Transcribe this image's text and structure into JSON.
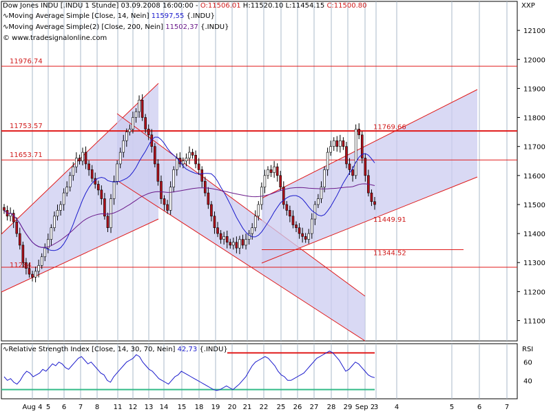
{
  "header": {
    "line1": {
      "prefix": "Dow Jones INDU [.INDU  1 Stunde] 03.09.2008 16:00:00 - ",
      "o": "O:11506.01",
      "h": " H:11520.10",
      "l": " L:11454.15",
      "c": " C:11500.80"
    },
    "line2": {
      "prefix": "Moving Average Simple [Close, 14, Nein] ",
      "value": "11597,55",
      "suffix": " {.INDU}"
    },
    "line3": {
      "prefix": "Moving Average Simple(2) [Close, 200, Nein] ",
      "value": "11502,37",
      "suffix": " {.INDU}"
    },
    "line4": "© www.tradesignalonline.com"
  },
  "corner_labels": {
    "main": "XXP",
    "rsi": "RSI"
  },
  "rsi_header": {
    "prefix": "Relative Strength Index [Close, 14, 30, 70, Nein] ",
    "value": "42,73",
    "suffix": " {.INDU}"
  },
  "colors": {
    "candle_up": "#ffffff",
    "candle_down": "#b0101a",
    "wick": "#000000",
    "ma14": "#1a1acc",
    "ma200": "#6a1a8a",
    "level_line": "#e01a1a",
    "channel_fill": "#ccccf0",
    "rsi_line": "#1a1acc",
    "rsi_70": "#e01a1a",
    "rsi_30": "#33bb88",
    "grid": "#a8b8c8"
  },
  "chart_data": {
    "type": "candlestick",
    "title": "Dow Jones INDU [.INDU  1 Stunde]",
    "x_ticks": [
      "Aug 4",
      "5",
      "6",
      "7",
      "8",
      "11",
      "12",
      "13",
      "14",
      "15",
      "18",
      "19",
      "20",
      "21",
      "22",
      "25",
      "26",
      "27",
      "28",
      "29",
      "Sep 2",
      "3",
      "4",
      "5",
      "6",
      "7"
    ],
    "ylim": [
      11030,
      12200
    ],
    "y_ticks": [
      11100,
      11200,
      11300,
      11400,
      11500,
      11600,
      11700,
      11800,
      11900,
      12000,
      12100
    ],
    "grid": true,
    "close_series": [
      11480,
      11460,
      11470,
      11440,
      11400,
      11360,
      11300,
      11280,
      11260,
      11250,
      11270,
      11290,
      11320,
      11350,
      11380,
      11420,
      11460,
      11480,
      11500,
      11540,
      11560,
      11600,
      11630,
      11660,
      11650,
      11680,
      11640,
      11620,
      11590,
      11570,
      11550,
      11520,
      11460,
      11420,
      11520,
      11580,
      11640,
      11680,
      11720,
      11750,
      11760,
      11800,
      11820,
      11860,
      11800,
      11760,
      11740,
      11700,
      11640,
      11580,
      11520,
      11500,
      11480,
      11560,
      11620,
      11660,
      11640,
      11650,
      11660,
      11680,
      11670,
      11640,
      11620,
      11580,
      11540,
      11500,
      11460,
      11420,
      11400,
      11380,
      11390,
      11370,
      11360,
      11370,
      11350,
      11380,
      11360,
      11380,
      11400,
      11420,
      11460,
      11500,
      11560,
      11600,
      11620,
      11610,
      11630,
      11600,
      11560,
      11500,
      11480,
      11460,
      11430,
      11420,
      11400,
      11390,
      11380,
      11400,
      11450,
      11500,
      11520,
      11560,
      11620,
      11680,
      11700,
      11720,
      11700,
      11720,
      11700,
      11640,
      11620,
      11600,
      11760,
      11740,
      11660,
      11600,
      11540,
      11510,
      11500
    ],
    "ma14": {
      "name": "Moving Average Simple [Close, 14, Nein]",
      "last": "11597,55"
    },
    "ma200": {
      "name": "Moving Average Simple(2) [Close, 200, Nein]",
      "last": "11502,37"
    },
    "horizontal_levels": [
      {
        "value": 11976.74,
        "label": "11976.74"
      },
      {
        "value": 11753.57,
        "label": "11753.57"
      },
      {
        "value": 11653.71,
        "label": "11653.71"
      },
      {
        "value": 11769.66,
        "label": "11769.66"
      },
      {
        "value": 11449.91,
        "label": "11449.91"
      },
      {
        "value": 11344.52,
        "label": "11344.52"
      },
      {
        "value": 11284,
        "label": "11284"
      }
    ],
    "rsi": {
      "name": "Relative Strength Index [Close, 14, 30, 70, Nein]",
      "ylim": [
        20,
        80
      ],
      "y_ticks": [
        40,
        60
      ],
      "overbought": 70,
      "oversold": 30,
      "values": [
        44,
        40,
        42,
        38,
        36,
        40,
        46,
        50,
        48,
        44,
        46,
        48,
        52,
        50,
        54,
        58,
        56,
        60,
        58,
        54,
        52,
        56,
        60,
        64,
        66,
        62,
        58,
        60,
        56,
        52,
        48,
        46,
        40,
        38,
        44,
        48,
        52,
        56,
        60,
        62,
        64,
        68,
        66,
        60,
        56,
        52,
        50,
        46,
        42,
        40,
        38,
        36,
        40,
        44,
        46,
        50,
        48,
        46,
        44,
        42,
        40,
        38,
        36,
        34,
        32,
        30,
        29,
        30,
        32,
        34,
        32,
        30,
        33,
        36,
        40,
        44,
        50,
        56,
        60,
        62,
        64,
        66,
        64,
        60,
        56,
        50,
        46,
        44,
        40,
        40,
        42,
        44,
        46,
        48,
        52,
        56,
        60,
        64,
        66,
        68,
        70,
        72,
        70,
        66,
        62,
        56,
        50,
        52,
        56,
        60,
        58,
        54,
        50,
        46,
        44,
        43
      ]
    }
  }
}
